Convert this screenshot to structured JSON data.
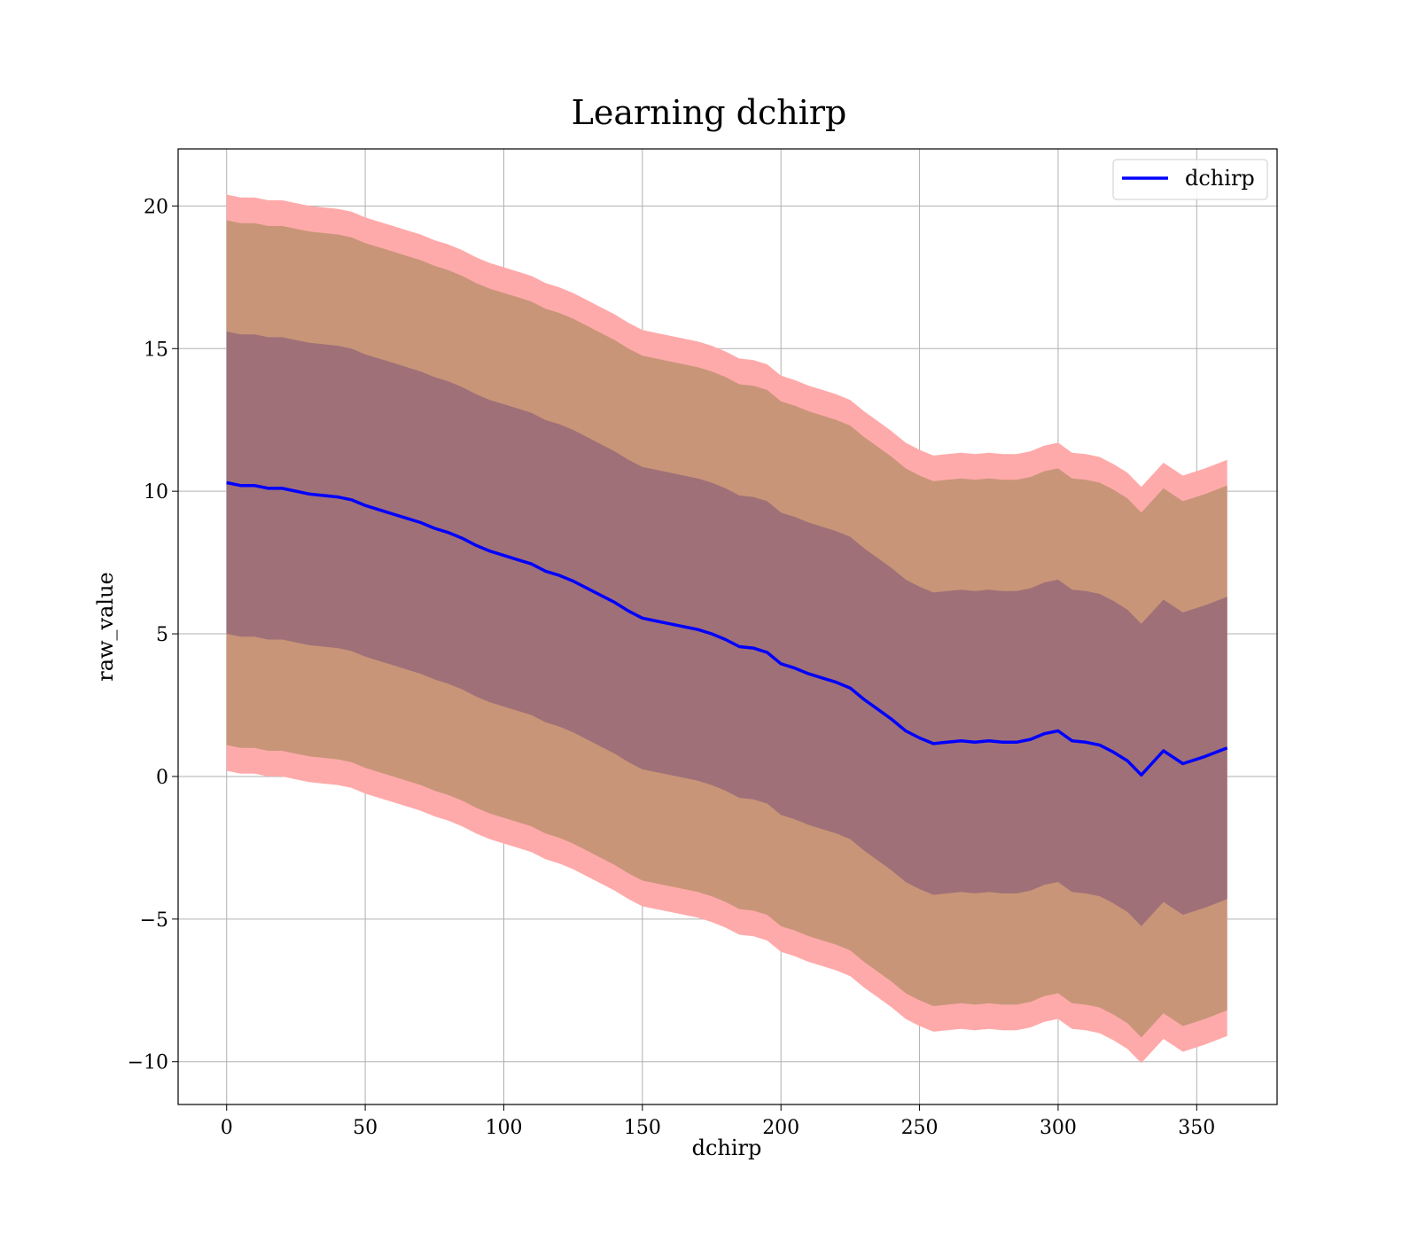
{
  "chart_data": {
    "type": "line",
    "title": "Learning dchirp",
    "xlabel": "dchirp",
    "ylabel": "raw_value",
    "xlim": [
      -17.5,
      379
    ],
    "ylim": [
      -11.5,
      22
    ],
    "xticks": [
      0,
      50,
      100,
      150,
      200,
      250,
      300,
      350
    ],
    "yticks": [
      -10,
      -5,
      0,
      5,
      10,
      15,
      20
    ],
    "ytick_labels": [
      "−10",
      "−5",
      "0",
      "5",
      "10",
      "15",
      "20"
    ],
    "grid": true,
    "legend_position": "top-right",
    "series": [
      {
        "name": "dchirp",
        "color": "#0000ff",
        "x": [
          0,
          5,
          10,
          15,
          20,
          25,
          30,
          35,
          40,
          45,
          50,
          55,
          60,
          65,
          70,
          75,
          80,
          85,
          90,
          95,
          100,
          105,
          110,
          115,
          120,
          125,
          130,
          135,
          140,
          145,
          150,
          155,
          160,
          165,
          170,
          175,
          180,
          185,
          190,
          195,
          200,
          205,
          210,
          215,
          220,
          225,
          230,
          235,
          240,
          245,
          250,
          255,
          260,
          265,
          270,
          275,
          280,
          285,
          290,
          295,
          300,
          305,
          310,
          315,
          320,
          325,
          330,
          338,
          345,
          353,
          361
        ],
        "values": [
          10.3,
          10.2,
          10.2,
          10.1,
          10.1,
          10.0,
          9.9,
          9.85,
          9.8,
          9.7,
          9.5,
          9.35,
          9.2,
          9.05,
          8.9,
          8.7,
          8.55,
          8.35,
          8.1,
          7.9,
          7.75,
          7.6,
          7.45,
          7.2,
          7.05,
          6.85,
          6.6,
          6.35,
          6.1,
          5.8,
          5.55,
          5.45,
          5.35,
          5.25,
          5.15,
          5.0,
          4.8,
          4.55,
          4.5,
          4.35,
          3.95,
          3.8,
          3.6,
          3.45,
          3.3,
          3.1,
          2.7,
          2.35,
          2.0,
          1.6,
          1.35,
          1.15,
          1.2,
          1.25,
          1.2,
          1.25,
          1.2,
          1.2,
          1.3,
          1.5,
          1.6,
          1.25,
          1.2,
          1.1,
          0.85,
          0.55,
          0.05,
          0.9,
          0.45,
          0.7,
          1.0
        ],
        "inner_band_half_width": 5.3,
        "mid_band_half_width": 9.2,
        "outer_band_half_width": 10.1,
        "inner_band_color": "#a07078",
        "mid_band_color": "#c89578",
        "outer_band_color": "#ffaaaa"
      }
    ]
  }
}
